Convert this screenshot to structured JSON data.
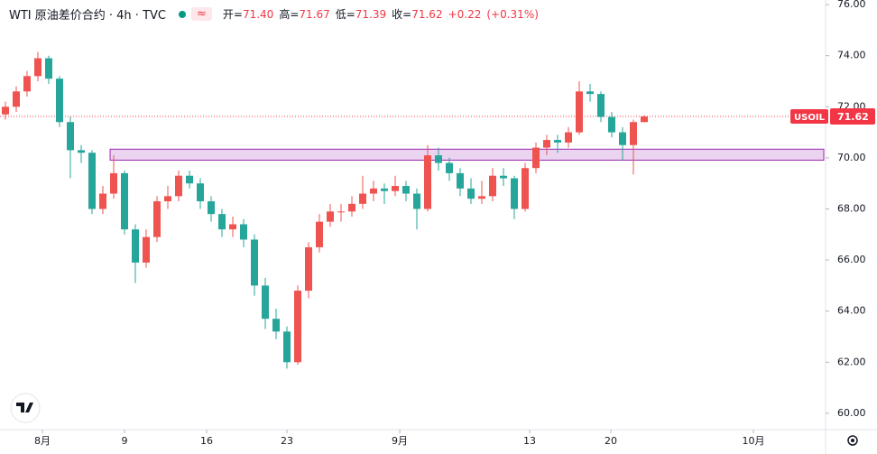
{
  "header": {
    "symbol": "WTI 原油差价合约 · 4h · TVC",
    "ohlc": [
      {
        "label": "开=",
        "value": "71.40"
      },
      {
        "label": "高=",
        "value": "71.67"
      },
      {
        "label": "低=",
        "value": "71.39"
      },
      {
        "label": "收=",
        "value": "71.62"
      }
    ],
    "change": "+0.22",
    "change_pct": "(+0.31%)"
  },
  "chart_data": {
    "type": "candlestick",
    "up_color": "#ef5350",
    "down_color": "#26a69a",
    "x": [
      0,
      1,
      2,
      3,
      4,
      5,
      6,
      7,
      8,
      9,
      10,
      11,
      12,
      13,
      14,
      15,
      16,
      17,
      18,
      19,
      20,
      21,
      22,
      23,
      24,
      25,
      26,
      27,
      28,
      29,
      30,
      31,
      32,
      33,
      34,
      35,
      36,
      37,
      38,
      39,
      40,
      41,
      42,
      43,
      44,
      45,
      46,
      47,
      48,
      49,
      50,
      51,
      52,
      53,
      54,
      55,
      56,
      57,
      58,
      59
    ],
    "open": [
      71.7,
      72.0,
      72.6,
      73.2,
      73.9,
      73.1,
      71.4,
      70.3,
      70.2,
      68.0,
      68.6,
      69.4,
      67.2,
      65.9,
      66.9,
      68.3,
      68.5,
      69.3,
      69.0,
      68.3,
      67.8,
      67.2,
      67.4,
      66.8,
      65.0,
      63.7,
      63.2,
      62.0,
      64.8,
      66.5,
      67.5,
      67.9,
      67.9,
      68.2,
      68.6,
      68.8,
      68.7,
      68.9,
      68.6,
      68.0,
      70.1,
      69.8,
      69.4,
      68.8,
      68.4,
      68.5,
      69.3,
      69.2,
      68.0,
      69.6,
      70.4,
      70.7,
      70.6,
      71.0,
      72.6,
      72.5,
      71.6,
      71.0,
      70.5,
      71.4
    ],
    "high": [
      72.2,
      72.8,
      73.4,
      74.15,
      74.0,
      73.2,
      71.6,
      70.5,
      70.3,
      68.9,
      70.1,
      69.5,
      67.4,
      67.2,
      68.5,
      68.9,
      69.5,
      69.5,
      69.2,
      68.5,
      68.0,
      67.7,
      67.6,
      67.0,
      65.3,
      64.1,
      63.4,
      65.0,
      66.7,
      67.8,
      68.2,
      68.2,
      68.5,
      69.3,
      69.1,
      69.0,
      69.3,
      69.1,
      68.8,
      70.5,
      70.4,
      70.0,
      69.6,
      69.2,
      69.1,
      69.6,
      69.6,
      69.3,
      69.8,
      70.6,
      70.9,
      70.9,
      71.2,
      73.0,
      72.9,
      72.6,
      71.8,
      71.2,
      71.5,
      71.67
    ],
    "low": [
      71.5,
      71.8,
      72.4,
      73.0,
      72.9,
      71.2,
      69.2,
      69.8,
      67.8,
      67.8,
      68.4,
      67.0,
      65.1,
      65.7,
      66.7,
      68.0,
      68.3,
      68.8,
      68.0,
      67.5,
      66.9,
      66.9,
      66.5,
      64.6,
      63.3,
      62.9,
      61.75,
      61.9,
      64.5,
      66.3,
      67.3,
      67.5,
      67.7,
      68.0,
      68.3,
      68.2,
      68.5,
      68.3,
      67.2,
      67.9,
      69.5,
      69.1,
      68.5,
      68.2,
      68.2,
      68.3,
      68.9,
      67.6,
      67.9,
      69.4,
      70.1,
      70.2,
      70.4,
      70.9,
      72.2,
      71.4,
      70.8,
      69.9,
      69.35,
      71.39
    ],
    "close": [
      72.0,
      72.6,
      73.2,
      73.9,
      73.1,
      71.4,
      70.3,
      70.2,
      68.0,
      68.6,
      69.4,
      67.2,
      65.9,
      66.9,
      68.3,
      68.5,
      69.3,
      69.0,
      68.3,
      67.8,
      67.2,
      67.4,
      66.8,
      65.0,
      63.7,
      63.2,
      62.0,
      64.8,
      66.5,
      67.5,
      67.9,
      67.9,
      68.2,
      68.6,
      68.8,
      68.7,
      68.9,
      68.6,
      68.0,
      70.1,
      69.8,
      69.4,
      68.8,
      68.4,
      68.5,
      69.3,
      69.2,
      68.0,
      69.6,
      70.4,
      70.7,
      70.6,
      71.0,
      72.6,
      72.5,
      71.6,
      71.0,
      70.5,
      71.4,
      71.62
    ],
    "xlim": [
      -0.5,
      75.75
    ],
    "xticks": [
      {
        "value": 3.42,
        "label": "8月"
      },
      {
        "value": 11,
        "label": "9"
      },
      {
        "value": 18.58,
        "label": "16"
      },
      {
        "value": 26,
        "label": "23"
      },
      {
        "value": 36.42,
        "label": "9月"
      },
      {
        "value": 48.42,
        "label": "13"
      },
      {
        "value": 55.92,
        "label": "20"
      },
      {
        "value": 69.08,
        "label": "10月"
      }
    ],
    "ylim": [
      59.36,
      76.18
    ],
    "yticks": [
      {
        "value": 60,
        "label": "60.00"
      },
      {
        "value": 62,
        "label": "62.00"
      },
      {
        "value": 64,
        "label": "64.00"
      },
      {
        "value": 66,
        "label": "66.00"
      },
      {
        "value": 68,
        "label": "68.00"
      },
      {
        "value": 70,
        "label": "70.00"
      },
      {
        "value": 72,
        "label": "72.00"
      },
      {
        "value": 74,
        "label": "74.00"
      },
      {
        "value": 76,
        "label": "76.00"
      }
    ],
    "zone": {
      "start": 9.67,
      "low": 69.91,
      "high": 70.34,
      "color": "#9c27b0"
    },
    "price_line": {
      "name": "USOIL",
      "value": 71.62,
      "color": "#f23645"
    }
  }
}
